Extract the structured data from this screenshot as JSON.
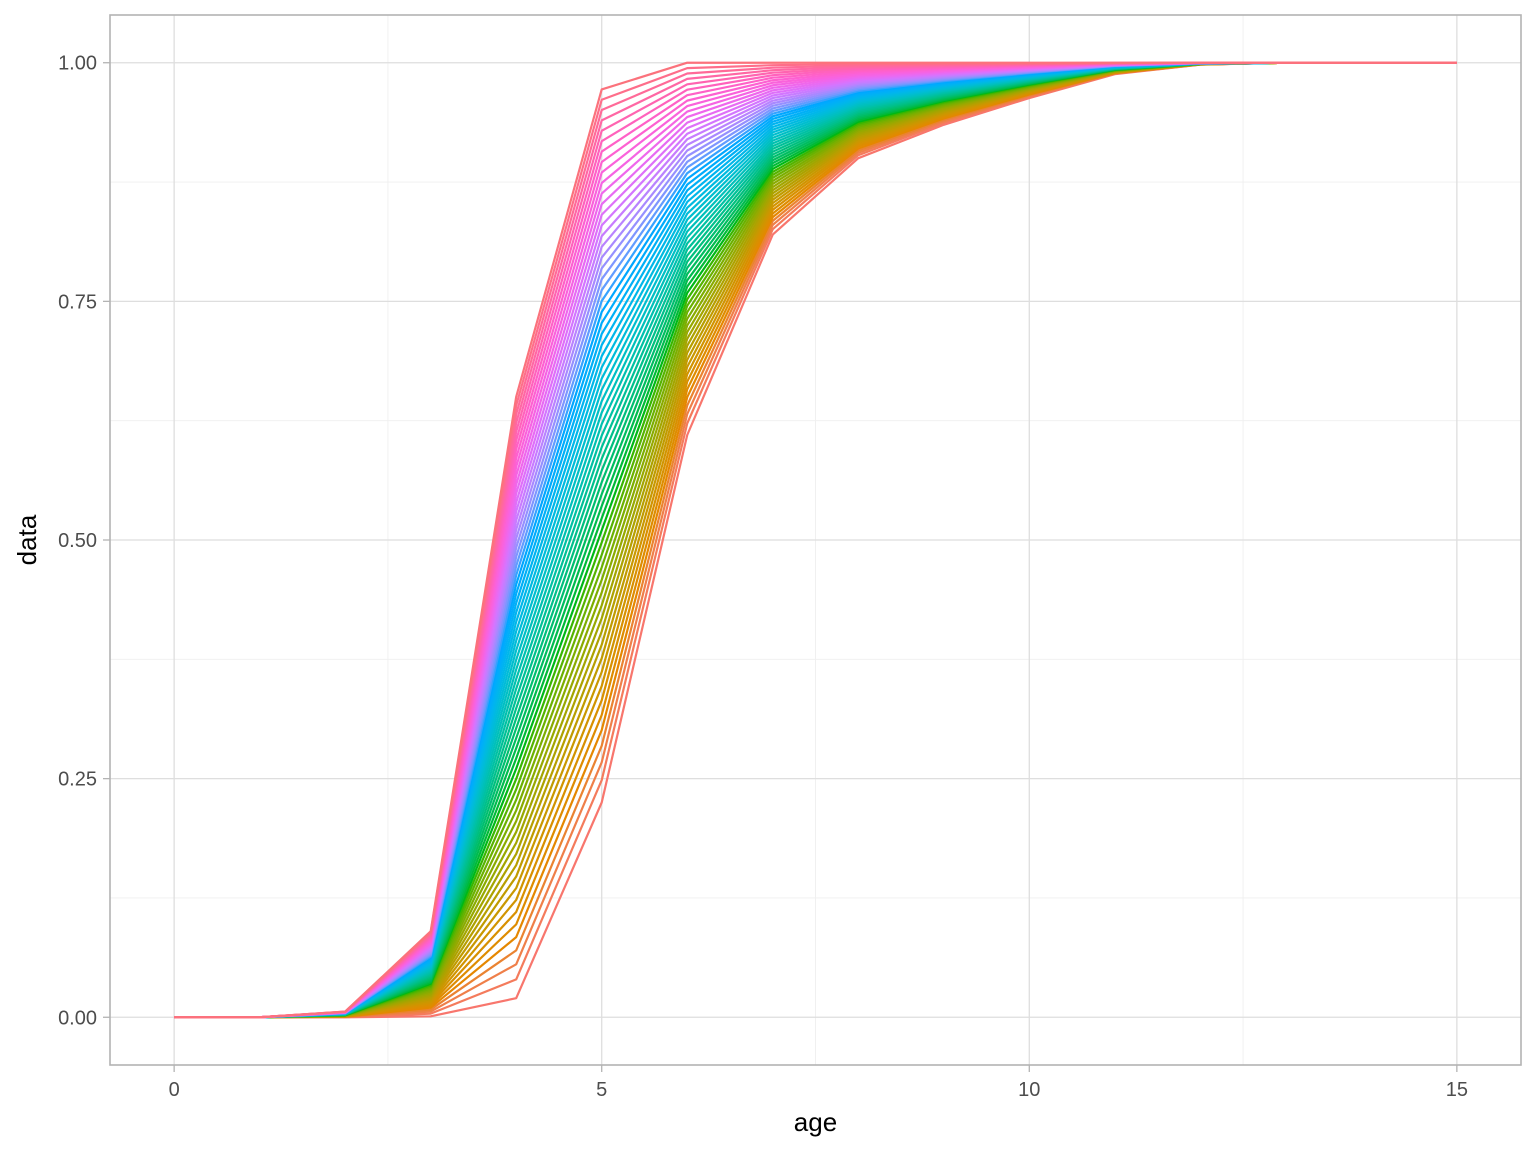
{
  "chart_data": {
    "type": "line",
    "title": "",
    "xlabel": "age",
    "ylabel": "data",
    "xlim": [
      -0.75,
      15.75
    ],
    "ylim": [
      -0.05,
      1.05
    ],
    "x_ticks": [
      0,
      5,
      10,
      15
    ],
    "x_tick_labels": [
      "0",
      "5",
      "10",
      "15"
    ],
    "y_ticks": [
      0,
      0.25,
      0.5,
      0.75,
      1.0
    ],
    "y_tick_labels": [
      "0.00",
      "0.25",
      "0.50",
      "0.75",
      "1.00"
    ],
    "grid": true,
    "legend": "none",
    "x": [
      0,
      1,
      2,
      3,
      4,
      5,
      6,
      7,
      8,
      9,
      10,
      11,
      12,
      13,
      14,
      15
    ],
    "series_count": 60,
    "series_order": "darkest-shift-first",
    "envelope": {
      "latest_curve": [
        0,
        0,
        0,
        0.001,
        0.02,
        0.225,
        0.61,
        0.82,
        0.9,
        0.935,
        0.963,
        0.988,
        0.998,
        1.0,
        1.0,
        1.0
      ],
      "earliest_curve": [
        0,
        0,
        0.006,
        0.09,
        0.65,
        0.972,
        1.0,
        1.0,
        1.0,
        1.0,
        1.0,
        1.0,
        1.0,
        1.0,
        1.0,
        1.0
      ]
    },
    "colors": {
      "palette": "hue",
      "first_series": "#F8766D",
      "last_series": "#FF6C91",
      "hue_start": 15,
      "hue_end": 375,
      "chroma": 100,
      "luminance": 65
    }
  }
}
